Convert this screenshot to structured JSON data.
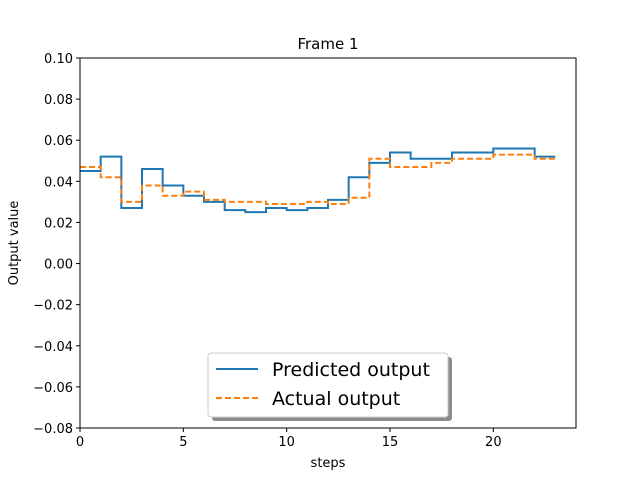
{
  "chart_data": {
    "type": "line",
    "step": "post",
    "title": "Frame 1",
    "xlabel": "steps",
    "ylabel": "Output value",
    "xlim": [
      0,
      24
    ],
    "ylim": [
      -0.08,
      0.1
    ],
    "xticks": [
      0,
      5,
      10,
      15,
      20
    ],
    "yticks": [
      -0.08,
      -0.06,
      -0.04,
      -0.02,
      0.0,
      0.02,
      0.04,
      0.06,
      0.08,
      0.1
    ],
    "xtick_labels": [
      "0",
      "5",
      "10",
      "15",
      "20"
    ],
    "ytick_labels": [
      "−0.08",
      "−0.06",
      "−0.04",
      "−0.02",
      "0.00",
      "0.02",
      "0.04",
      "0.06",
      "0.08",
      "0.10"
    ],
    "grid": false,
    "legend_position": "lower-center",
    "x": [
      0,
      1,
      2,
      3,
      4,
      5,
      6,
      7,
      8,
      9,
      10,
      11,
      12,
      13,
      14,
      15,
      16,
      17,
      18,
      19,
      20,
      21,
      22,
      23
    ],
    "series": [
      {
        "name": "Predicted output",
        "color": "#1f77b4",
        "style": "solid",
        "values": [
          0.045,
          0.052,
          0.027,
          0.046,
          0.038,
          0.033,
          0.03,
          0.026,
          0.025,
          0.027,
          0.026,
          0.027,
          0.031,
          0.042,
          0.049,
          0.054,
          0.051,
          0.051,
          0.054,
          0.054,
          0.056,
          0.056,
          0.052,
          0.052
        ]
      },
      {
        "name": "Actual output",
        "color": "#ff7f0e",
        "style": "dashed",
        "values": [
          0.047,
          0.042,
          0.03,
          0.038,
          0.033,
          0.035,
          0.031,
          0.03,
          0.03,
          0.029,
          0.029,
          0.03,
          0.029,
          0.032,
          0.051,
          0.047,
          0.047,
          0.049,
          0.051,
          0.051,
          0.053,
          0.053,
          0.051,
          0.051
        ]
      }
    ]
  }
}
